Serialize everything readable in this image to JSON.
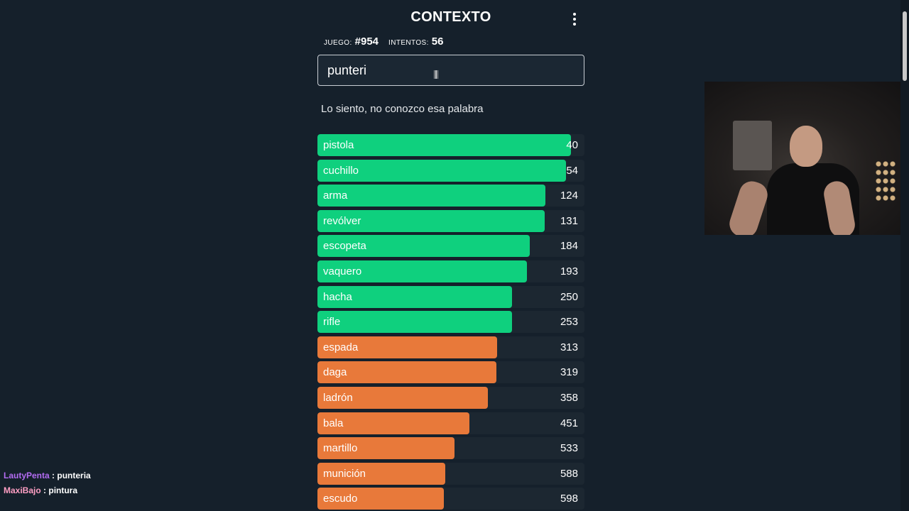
{
  "header": {
    "title": "CONTEXTO",
    "menu_icon": "kebab-menu-icon"
  },
  "stats": {
    "game_label": "JUEGO:",
    "game_value": "#954",
    "attempts_label": "INTENTOS:",
    "attempts_value": "56"
  },
  "search": {
    "value": "punteri",
    "placeholder": ""
  },
  "message": "Lo siento, no conozco esa palabra",
  "colors": {
    "close": "#0fd07e",
    "medium": "#e8793a",
    "background": "#15202b",
    "row_bg": "#1c2731"
  },
  "guesses": [
    {
      "word": "pistola",
      "rank": "40",
      "fill": 0.95,
      "color": "green"
    },
    {
      "word": "cuchillo",
      "rank": "54",
      "fill": 0.93,
      "color": "green"
    },
    {
      "word": "arma",
      "rank": "124",
      "fill": 0.855,
      "color": "green"
    },
    {
      "word": "revólver",
      "rank": "131",
      "fill": 0.85,
      "color": "green"
    },
    {
      "word": "escopeta",
      "rank": "184",
      "fill": 0.795,
      "color": "green"
    },
    {
      "word": "vaquero",
      "rank": "193",
      "fill": 0.785,
      "color": "green"
    },
    {
      "word": "hacha",
      "rank": "250",
      "fill": 0.73,
      "color": "green"
    },
    {
      "word": "rifle",
      "rank": "253",
      "fill": 0.728,
      "color": "green"
    },
    {
      "word": "espada",
      "rank": "313",
      "fill": 0.673,
      "color": "orange"
    },
    {
      "word": "daga",
      "rank": "319",
      "fill": 0.67,
      "color": "orange"
    },
    {
      "word": "ladrón",
      "rank": "358",
      "fill": 0.637,
      "color": "orange"
    },
    {
      "word": "bala",
      "rank": "451",
      "fill": 0.568,
      "color": "orange"
    },
    {
      "word": "martillo",
      "rank": "533",
      "fill": 0.513,
      "color": "orange"
    },
    {
      "word": "munición",
      "rank": "588",
      "fill": 0.479,
      "color": "orange"
    },
    {
      "word": "escudo",
      "rank": "598",
      "fill": 0.473,
      "color": "orange"
    }
  ],
  "chat": [
    {
      "user": "LautyPenta",
      "separator": " : ",
      "message": "punteria"
    },
    {
      "user": "MaxiBajo",
      "separator": " : ",
      "message": "pintura"
    }
  ]
}
